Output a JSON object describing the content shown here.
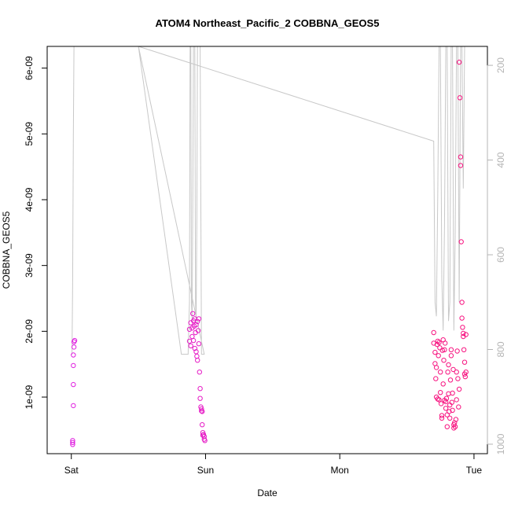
{
  "chart_data": {
    "type": "scatter",
    "title": "ATOM4 Northeast_Pacific_2 COBBNA_GEOS5",
    "xlabel": "Date",
    "ylabel": "COBBNA_GEOS5",
    "x_ticks": [
      "Sat",
      "Sun",
      "Mon",
      "Tue"
    ],
    "x_unit": "day index (Sat = 0, Sun = 1, Mon = 2, Tue = 3)",
    "xlim": [
      -0.18,
      3.1
    ],
    "ylim": [
      1.4e-10,
      6.33e-09
    ],
    "y_ticks": [
      {
        "value": 1e-09,
        "label": "1e-09"
      },
      {
        "value": 2e-09,
        "label": "2e-09"
      },
      {
        "value": 3e-09,
        "label": "3e-09"
      },
      {
        "value": 4e-09,
        "label": "4e-09"
      },
      {
        "value": 5e-09,
        "label": "5e-09"
      },
      {
        "value": 6e-09,
        "label": "6e-09"
      }
    ],
    "y2lim": [
      1020,
      160
    ],
    "y2_reversed": true,
    "y2_ticks": [
      200,
      400,
      600,
      800,
      1000
    ],
    "grid": false,
    "legend": "none",
    "colors": {
      "low_pressure": "#e020e0",
      "high_pressure": "#ff1060",
      "pressure_line": "#c8c8c8",
      "axis": "#000000",
      "right_axis": "#b4b4b4"
    },
    "series": [
      {
        "kind": "points",
        "points": [
          [
            0.01,
            2.8e-10,
            0
          ],
          [
            0.01,
            3.1e-10,
            0
          ],
          [
            0.01,
            3.4e-10,
            0
          ],
          [
            0.015,
            8.7e-10,
            0
          ],
          [
            0.015,
            1.19e-09,
            0
          ],
          [
            0.015,
            1.48e-09,
            0
          ],
          [
            0.015,
            1.64e-09,
            0
          ],
          [
            0.02,
            1.76e-09,
            0
          ],
          [
            0.02,
            1.84e-09,
            0
          ],
          [
            0.025,
            1.86e-09,
            0
          ],
          [
            0.88,
            1.85e-09,
            0.2
          ],
          [
            0.88,
            2.03e-09,
            0.2
          ],
          [
            0.89,
            2.13e-09,
            0.2
          ],
          [
            0.89,
            1.78e-09,
            0.2
          ],
          [
            0.9,
            2.05e-09,
            0.2
          ],
          [
            0.9,
            1.92e-09,
            0.2
          ],
          [
            0.905,
            2.27e-09,
            0.2
          ],
          [
            0.91,
            2.16e-09,
            0.2
          ],
          [
            0.91,
            1.86e-09,
            0.2
          ],
          [
            0.915,
            2.08e-09,
            0.2
          ],
          [
            0.92,
            1.74e-09,
            0.2
          ],
          [
            0.92,
            2.19e-09,
            0.2
          ],
          [
            0.925,
            1.98e-09,
            0.2
          ],
          [
            0.93,
            1.69e-09,
            0.2
          ],
          [
            0.93,
            2.1e-09,
            0.2
          ],
          [
            0.935,
            1.62e-09,
            0.2
          ],
          [
            0.94,
            2.15e-09,
            0.2
          ],
          [
            0.94,
            1.56e-09,
            0.2
          ],
          [
            0.945,
            2.01e-09,
            0.2
          ],
          [
            0.95,
            2.19e-09,
            0.2
          ],
          [
            0.95,
            1.81e-09,
            0.2
          ],
          [
            0.955,
            1.38e-09,
            0.2
          ],
          [
            0.96,
            1.13e-09,
            0.2
          ],
          [
            0.96,
            9.8e-10,
            0.2
          ],
          [
            0.965,
            8.5e-10,
            0.2
          ],
          [
            0.97,
            7.9e-10,
            0.2
          ],
          [
            0.97,
            8.2e-10,
            0.2
          ],
          [
            0.975,
            7.8e-10,
            0.2
          ],
          [
            0.975,
            5.8e-10,
            0.2
          ],
          [
            0.98,
            4.6e-10,
            0.2
          ],
          [
            0.98,
            4.2e-10,
            0.2
          ],
          [
            0.985,
            4.3e-10,
            0.2
          ],
          [
            0.99,
            3.6e-10,
            0.2
          ],
          [
            0.99,
            4e-10,
            0.2
          ],
          [
            0.995,
            3.4e-10,
            0.2
          ],
          [
            2.7,
            1.98e-09,
            0.75
          ],
          [
            2.7,
            1.82e-09,
            0.75
          ],
          [
            2.71,
            1.68e-09,
            0.75
          ],
          [
            2.71,
            1.51e-09,
            0.75
          ],
          [
            2.715,
            1.28e-09,
            0.75
          ],
          [
            2.72,
            1e-09,
            0.75
          ],
          [
            2.72,
            1.45e-09,
            0.75
          ],
          [
            2.725,
            1.8e-09,
            0.75
          ],
          [
            2.73,
            1.85e-09,
            0.75
          ],
          [
            2.73,
            9.7e-10,
            0.75
          ],
          [
            2.735,
            1.63e-09,
            0.75
          ],
          [
            2.74,
            1.83e-09,
            0.75
          ],
          [
            2.74,
            9.6e-10,
            0.75
          ],
          [
            2.745,
            1.75e-09,
            0.75
          ],
          [
            2.75,
            1.38e-09,
            0.75
          ],
          [
            2.75,
            1.07e-09,
            0.75
          ],
          [
            2.755,
            9e-10,
            0.75
          ],
          [
            2.76,
            7.2e-10,
            0.75
          ],
          [
            2.76,
            6.8e-10,
            0.75
          ],
          [
            2.765,
            1.71e-09,
            0.75
          ],
          [
            2.77,
            1.87e-09,
            0.75
          ],
          [
            2.77,
            1.2e-09,
            0.75
          ],
          [
            2.775,
            1.56e-09,
            0.75
          ],
          [
            2.78,
            1.72e-09,
            0.75
          ],
          [
            2.78,
            9.5e-10,
            0.75
          ],
          [
            2.785,
            1.82e-09,
            0.75
          ],
          [
            2.79,
            8.3e-10,
            0.75
          ],
          [
            2.79,
            9.3e-10,
            0.75
          ],
          [
            2.795,
            9.8e-10,
            0.75
          ],
          [
            2.8,
            5.5e-10,
            0.75
          ],
          [
            2.8,
            7.3e-10,
            0.75
          ],
          [
            2.805,
            1.38e-09,
            0.75
          ],
          [
            2.81,
            1.49e-09,
            0.75
          ],
          [
            2.81,
            1.05e-09,
            0.75
          ],
          [
            2.815,
            7.8e-10,
            0.75
          ],
          [
            2.82,
            6.8e-10,
            0.75
          ],
          [
            2.82,
            8.8e-10,
            0.75
          ],
          [
            2.825,
            1.26e-09,
            0.75
          ],
          [
            2.83,
            1.63e-09,
            0.75
          ],
          [
            2.83,
            1.72e-09,
            0.75
          ],
          [
            2.835,
            9.2e-10,
            0.75
          ],
          [
            2.84,
            1.06e-09,
            0.75
          ],
          [
            2.84,
            8e-10,
            0.75
          ],
          [
            2.845,
            1.42e-09,
            0.75
          ],
          [
            2.85,
            5.8e-10,
            0.75
          ],
          [
            2.85,
            5.3e-10,
            0.75
          ],
          [
            2.855,
            6.1e-10,
            0.75
          ],
          [
            2.86,
            5.5e-10,
            0.75
          ],
          [
            2.865,
            6.6e-10,
            0.75
          ],
          [
            2.87,
            9.6e-10,
            0.75
          ],
          [
            2.87,
            1.38e-09,
            0.75
          ],
          [
            2.875,
            1.7e-09,
            0.75
          ],
          [
            2.88,
            1.28e-09,
            0.75
          ],
          [
            2.885,
            8.5e-10,
            0.75
          ],
          [
            2.89,
            1.12e-09,
            0.75
          ],
          [
            2.89,
            6.09e-09,
            0.75
          ],
          [
            2.895,
            5.55e-09,
            0.75
          ],
          [
            2.9,
            4.65e-09,
            0.75
          ],
          [
            2.9,
            4.52e-09,
            0.75
          ],
          [
            2.905,
            3.36e-09,
            0.75
          ],
          [
            2.91,
            2.44e-09,
            0.75
          ],
          [
            2.91,
            2.2e-09,
            0.75
          ],
          [
            2.915,
            2.06e-09,
            0.75
          ],
          [
            2.92,
            1.97e-09,
            0.75
          ],
          [
            2.92,
            1.92e-09,
            0.75
          ],
          [
            2.925,
            1.72e-09,
            0.75
          ],
          [
            2.93,
            1.53e-09,
            0.75
          ],
          [
            2.93,
            1.35e-09,
            0.75
          ],
          [
            2.935,
            1.31e-09,
            0.75
          ],
          [
            2.94,
            1.38e-09,
            0.75
          ],
          [
            2.94,
            1.95e-09,
            0.75
          ]
        ]
      },
      {
        "kind": "pressure-line",
        "axis": "right",
        "points": [
          [
            0.0,
            810
          ],
          [
            0.005,
            810
          ],
          [
            0.01,
            660
          ],
          [
            0.015,
            350
          ],
          [
            0.02,
            160
          ],
          [
            0.5,
            160
          ],
          [
            0.82,
            810
          ],
          [
            0.87,
            810
          ],
          [
            0.88,
            700
          ],
          [
            0.885,
            160
          ],
          [
            0.89,
            160
          ],
          [
            0.895,
            700
          ],
          [
            0.9,
            740
          ],
          [
            0.905,
            500
          ],
          [
            0.91,
            160
          ],
          [
            0.92,
            160
          ],
          [
            0.925,
            700
          ],
          [
            0.93,
            740
          ],
          [
            0.935,
            520
          ],
          [
            0.94,
            160
          ],
          [
            0.96,
            160
          ],
          [
            0.97,
            810
          ],
          [
            0.99,
            810
          ],
          [
            0.5,
            160
          ],
          [
            2.7,
            360
          ],
          [
            2.71,
            700
          ],
          [
            2.72,
            730
          ],
          [
            2.73,
            480
          ],
          [
            2.74,
            160
          ],
          [
            2.75,
            160
          ],
          [
            2.76,
            650
          ],
          [
            2.77,
            760
          ],
          [
            2.78,
            540
          ],
          [
            2.79,
            160
          ],
          [
            2.8,
            160
          ],
          [
            2.81,
            740
          ],
          [
            2.82,
            700
          ],
          [
            2.83,
            160
          ],
          [
            2.84,
            160
          ],
          [
            2.85,
            760
          ],
          [
            2.86,
            560
          ],
          [
            2.87,
            160
          ],
          [
            2.88,
            160
          ],
          [
            2.89,
            700
          ],
          [
            2.9,
            160
          ],
          [
            2.91,
            160
          ],
          [
            2.92,
            460
          ],
          [
            2.93,
            160
          ],
          [
            2.94,
            160
          ]
        ]
      }
    ]
  }
}
